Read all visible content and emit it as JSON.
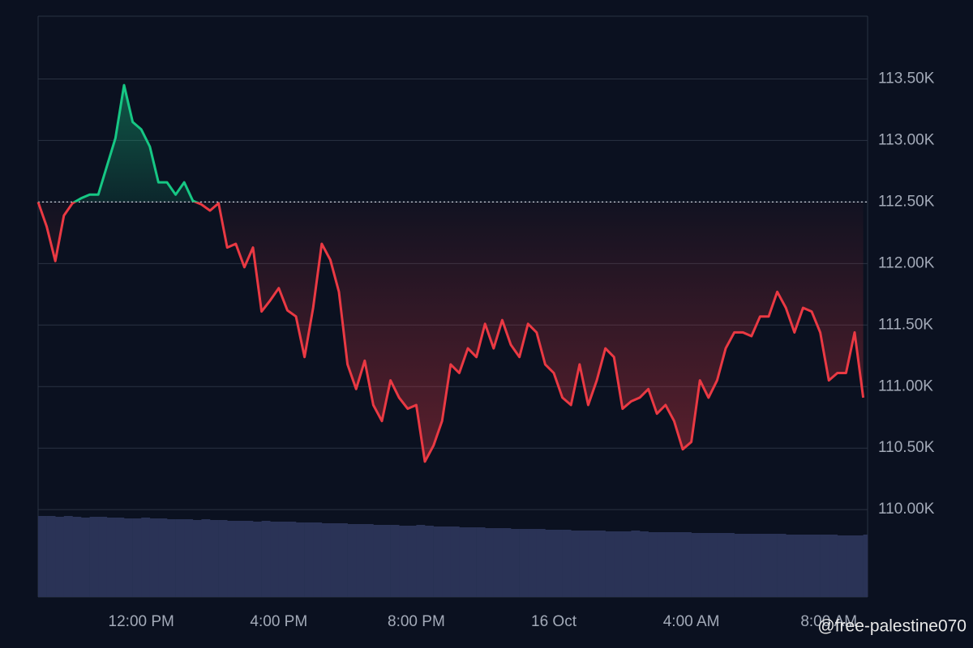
{
  "chart_data": {
    "type": "line",
    "categories": [
      null,
      null,
      null,
      null,
      null,
      null,
      null,
      null,
      null,
      null,
      null,
      null,
      "12:00 PM",
      null,
      null,
      null,
      null,
      null,
      null,
      null,
      null,
      null,
      null,
      null,
      null,
      null,
      null,
      null,
      "4:00 PM",
      null,
      null,
      null,
      null,
      null,
      null,
      null,
      null,
      null,
      null,
      null,
      null,
      null,
      null,
      null,
      "8:00 PM",
      null,
      null,
      null,
      null,
      null,
      null,
      null,
      null,
      null,
      null,
      null,
      null,
      null,
      null,
      null,
      "16 Oct",
      null,
      null,
      null,
      null,
      null,
      null,
      null,
      null,
      null,
      null,
      null,
      null,
      null,
      null,
      null,
      "4:00 AM",
      null,
      null,
      null,
      null,
      null,
      null,
      null,
      null,
      null,
      null,
      null,
      null,
      null,
      null,
      null,
      "8:00 AM",
      null,
      null,
      null,
      null
    ],
    "values": [
      112500,
      112300,
      112020,
      112390,
      112490,
      112530,
      112560,
      112560,
      112790,
      113020,
      113450,
      113150,
      113090,
      112950,
      112660,
      112660,
      112560,
      112660,
      112510,
      112480,
      112430,
      112490,
      112130,
      112160,
      111970,
      112130,
      111610,
      111700,
      111800,
      111620,
      111570,
      111240,
      111640,
      112160,
      112030,
      111770,
      111180,
      110980,
      111210,
      110850,
      110720,
      111050,
      110910,
      110820,
      110850,
      110390,
      110520,
      110720,
      111180,
      111110,
      111310,
      111240,
      111510,
      111310,
      111540,
      111340,
      111240,
      111510,
      111440,
      111180,
      111110,
      110910,
      110850,
      111180,
      110850,
      111050,
      111310,
      111240,
      110820,
      110880,
      110910,
      110980,
      110780,
      110850,
      110720,
      110490,
      110550,
      111050,
      110910,
      111050,
      111310,
      111440,
      111440,
      111410,
      111570,
      111570,
      111770,
      111640,
      111440,
      111640,
      111610,
      111440,
      111050,
      111110,
      111110,
      111440,
      110910
    ],
    "baseline": 112500,
    "color_above": "#16c784",
    "color_below": "#ea3943",
    "volume": {
      "color": "#2a3356",
      "values": [
        100,
        100,
        99,
        100,
        99,
        98,
        99,
        99,
        98,
        98,
        97,
        97,
        98,
        97,
        97,
        96,
        96,
        96,
        95,
        96,
        95,
        95,
        94,
        94,
        94,
        93,
        94,
        93,
        93,
        93,
        92,
        92,
        92,
        91,
        91,
        91,
        90,
        90,
        90,
        89,
        89,
        89,
        88,
        88,
        89,
        88,
        87,
        87,
        87,
        86,
        86,
        86,
        85,
        85,
        85,
        84,
        84,
        84,
        84,
        83,
        83,
        83,
        82,
        82,
        82,
        82,
        81,
        81,
        81,
        82,
        81,
        80,
        80,
        80,
        80,
        80,
        79,
        79,
        79,
        79,
        79,
        78,
        78,
        78,
        78,
        78,
        78,
        77,
        77,
        77,
        77,
        77,
        77,
        76,
        76,
        76,
        77
      ]
    },
    "y2lim": [
      0,
      717
    ],
    "ylim": [
      109290,
      114010
    ],
    "yticks": [
      {
        "value": 110000,
        "label": "110.00K"
      },
      {
        "value": 110500,
        "label": "110.50K"
      },
      {
        "value": 111000,
        "label": "111.00K"
      },
      {
        "value": 111500,
        "label": "111.50K"
      },
      {
        "value": 112000,
        "label": "112.00K"
      },
      {
        "value": 112500,
        "label": "112.50K"
      },
      {
        "value": 113000,
        "label": "113.00K"
      },
      {
        "value": 113500,
        "label": "113.50K"
      }
    ],
    "grid": true,
    "watermark": "@free-palestine070"
  }
}
